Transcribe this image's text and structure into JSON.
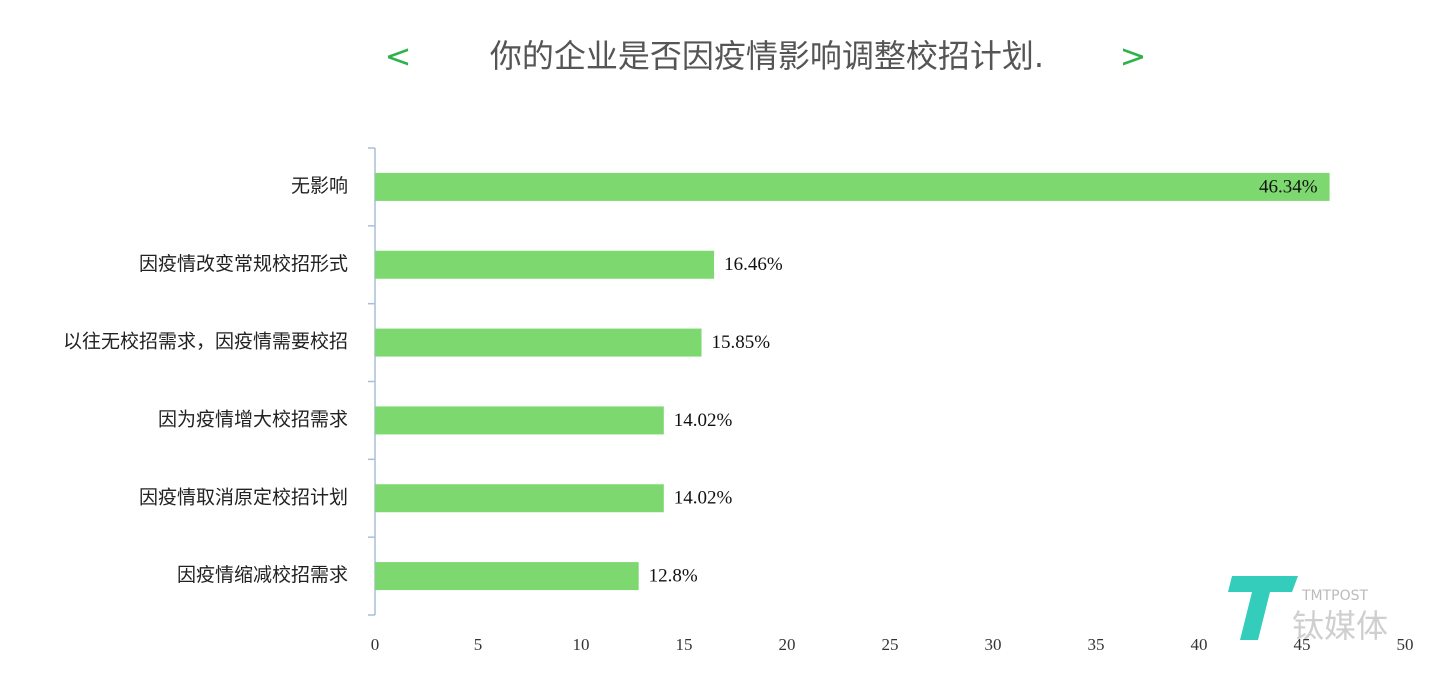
{
  "chart_data": {
    "type": "bar",
    "orientation": "horizontal",
    "title_open": "<",
    "title": "你的企业是否因疫情影响调整校招计划.",
    "title_close": ">",
    "categories": [
      "无影响",
      "因疫情改变常规校招形式",
      "以往无校招需求，因疫情需要校招",
      "因为疫情增大校招需求",
      "因疫情取消原定校招计划",
      "因疫情缩减校招需求"
    ],
    "values": [
      46.34,
      16.46,
      15.85,
      14.02,
      14.02,
      12.8
    ],
    "value_labels": [
      "46.34%",
      "16.46%",
      "15.85%",
      "14.02%",
      "14.02%",
      "12.8%"
    ],
    "color": "#7dd96f",
    "xlim": [
      0,
      50
    ],
    "xticks": [
      0,
      5,
      10,
      15,
      20,
      25,
      30,
      35,
      40,
      45,
      50
    ],
    "grid": false
  },
  "watermark": {
    "brand": "TMTPOST",
    "name": "钛媒体"
  }
}
